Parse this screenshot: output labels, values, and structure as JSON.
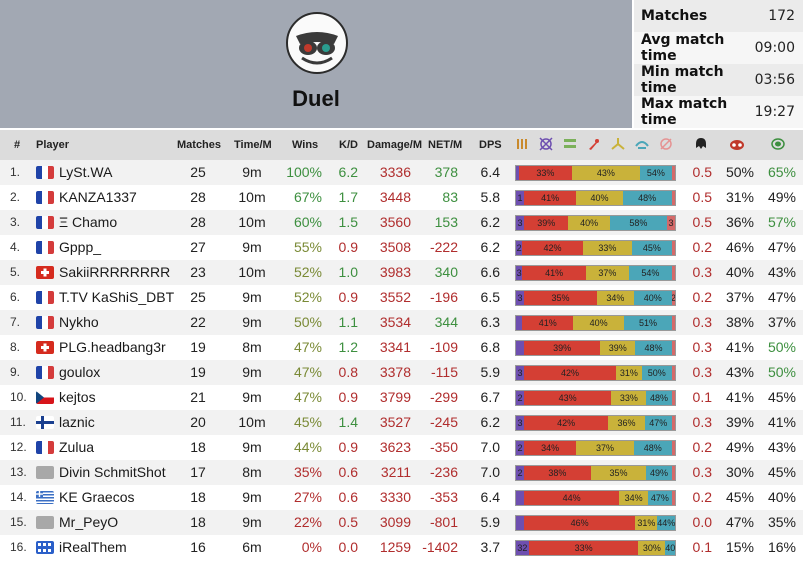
{
  "hero": {
    "title": "Duel"
  },
  "stats": [
    {
      "label": "Matches",
      "value": "172"
    },
    {
      "label": "Avg match time",
      "value": "09:00"
    },
    {
      "label": "Min match time",
      "value": "03:56"
    },
    {
      "label": "Max match time",
      "value": "19:27"
    }
  ],
  "columns": {
    "rank": "#",
    "player": "Player",
    "matches": "Matches",
    "time": "Time/M",
    "wins": "Wins",
    "kd": "K/D",
    "damage": "Damage/M",
    "net": "NET/M",
    "dps": "DPS"
  },
  "header_icons": [
    "ammo-icon",
    "crosshair-icon",
    "armor-icon",
    "rocket-icon",
    "plasma-icon",
    "rail-icon",
    "lightning-icon",
    "kill-icon",
    "eyes-icon",
    "armor-ratio-icon"
  ],
  "colors": {
    "seg": [
      "#6e4fb0",
      "#d43f34",
      "#c9b23a",
      "#4ba6b8",
      "#d46a6a"
    ],
    "wins_high": "#3d8f3f",
    "wins_mid": "#7a8a36",
    "wins_low": "#b02d2d",
    "negative": "#b02d2d"
  },
  "players": [
    {
      "rank": "1.",
      "flag": "fr",
      "name": "LySt.WA",
      "matches": "25",
      "time": "9m",
      "wins": "100%",
      "kd": "6.2",
      "damage": "3336",
      "net": "378",
      "dps": "6.4",
      "segs": [
        {
          "w": 2,
          "t": ""
        },
        {
          "w": 33,
          "t": "33%"
        },
        {
          "w": 43,
          "t": "43%"
        },
        {
          "w": 20,
          "t": "54%"
        },
        {
          "w": 2,
          "t": ""
        }
      ],
      "c1": "0.5",
      "c2": "50%",
      "c3": "65%"
    },
    {
      "rank": "2.",
      "flag": "fr",
      "name": "KANZA1337",
      "matches": "28",
      "time": "10m",
      "wins": "67%",
      "kd": "1.7",
      "damage": "3448",
      "net": "83",
      "dps": "5.8",
      "segs": [
        {
          "w": 5,
          "t": "1"
        },
        {
          "w": 33,
          "t": "41%"
        },
        {
          "w": 29,
          "t": "40%"
        },
        {
          "w": 31,
          "t": "48%"
        },
        {
          "w": 2,
          "t": ""
        }
      ],
      "c1": "0.5",
      "c2": "31%",
      "c3": "49%"
    },
    {
      "rank": "3.",
      "flag": "fr",
      "name": "Ξ Chamo",
      "matches": "28",
      "time": "10m",
      "wins": "60%",
      "kd": "1.5",
      "damage": "3560",
      "net": "153",
      "dps": "6.2",
      "segs": [
        {
          "w": 5,
          "t": "3"
        },
        {
          "w": 28,
          "t": "39%"
        },
        {
          "w": 26,
          "t": "40%"
        },
        {
          "w": 36,
          "t": "58%"
        },
        {
          "w": 5,
          "t": "3"
        }
      ],
      "c1": "0.5",
      "c2": "36%",
      "c3": "57%"
    },
    {
      "rank": "4.",
      "flag": "fr",
      "name": "Gppp_",
      "matches": "27",
      "time": "9m",
      "wins": "55%",
      "kd": "0.9",
      "damage": "3508",
      "net": "-222",
      "dps": "6.2",
      "segs": [
        {
          "w": 4,
          "t": "2"
        },
        {
          "w": 38,
          "t": "42%"
        },
        {
          "w": 31,
          "t": "33%"
        },
        {
          "w": 25,
          "t": "45%"
        },
        {
          "w": 2,
          "t": ""
        }
      ],
      "c1": "0.2",
      "c2": "46%",
      "c3": "47%"
    },
    {
      "rank": "5.",
      "flag": "ch",
      "name": "SakiiRRRRRRRR",
      "matches": "23",
      "time": "10m",
      "wins": "52%",
      "kd": "1.0",
      "damage": "3983",
      "net": "340",
      "dps": "6.6",
      "segs": [
        {
          "w": 4,
          "t": "3"
        },
        {
          "w": 40,
          "t": "41%"
        },
        {
          "w": 27,
          "t": "37%"
        },
        {
          "w": 27,
          "t": "54%"
        },
        {
          "w": 2,
          "t": ""
        }
      ],
      "c1": "0.3",
      "c2": "40%",
      "c3": "43%"
    },
    {
      "rank": "6.",
      "flag": "fr",
      "name": "T.TV KaShiS_DBT",
      "matches": "25",
      "time": "9m",
      "wins": "52%",
      "kd": "0.9",
      "damage": "3552",
      "net": "-196",
      "dps": "6.5",
      "segs": [
        {
          "w": 5,
          "t": "3"
        },
        {
          "w": 46,
          "t": "35%"
        },
        {
          "w": 23,
          "t": "34%"
        },
        {
          "w": 24,
          "t": "40%"
        },
        {
          "w": 2,
          "t": "2"
        }
      ],
      "c1": "0.2",
      "c2": "37%",
      "c3": "47%"
    },
    {
      "rank": "7.",
      "flag": "fr",
      "name": "Nykho",
      "matches": "22",
      "time": "9m",
      "wins": "50%",
      "kd": "1.1",
      "damage": "3534",
      "net": "344",
      "dps": "6.3",
      "segs": [
        {
          "w": 4,
          "t": ""
        },
        {
          "w": 32,
          "t": "41%"
        },
        {
          "w": 32,
          "t": "40%"
        },
        {
          "w": 30,
          "t": "51%"
        },
        {
          "w": 2,
          "t": ""
        }
      ],
      "c1": "0.3",
      "c2": "38%",
      "c3": "37%"
    },
    {
      "rank": "8.",
      "flag": "ch",
      "name": "PLG.headbang3r",
      "matches": "19",
      "time": "8m",
      "wins": "47%",
      "kd": "1.2",
      "damage": "3341",
      "net": "-109",
      "dps": "6.8",
      "segs": [
        {
          "w": 5,
          "t": ""
        },
        {
          "w": 48,
          "t": "39%"
        },
        {
          "w": 22,
          "t": "39%"
        },
        {
          "w": 23,
          "t": "48%"
        },
        {
          "w": 2,
          "t": ""
        }
      ],
      "c1": "0.3",
      "c2": "41%",
      "c3": "50%"
    },
    {
      "rank": "9.",
      "flag": "fr",
      "name": "goulox",
      "matches": "19",
      "time": "9m",
      "wins": "47%",
      "kd": "0.8",
      "damage": "3378",
      "net": "-115",
      "dps": "5.9",
      "segs": [
        {
          "w": 5,
          "t": "3"
        },
        {
          "w": 58,
          "t": "42%"
        },
        {
          "w": 16,
          "t": "31%"
        },
        {
          "w": 19,
          "t": "50%"
        },
        {
          "w": 2,
          "t": ""
        }
      ],
      "c1": "0.3",
      "c2": "43%",
      "c3": "50%"
    },
    {
      "rank": "10.",
      "flag": "cz",
      "name": "kejtos",
      "matches": "21",
      "time": "9m",
      "wins": "47%",
      "kd": "0.9",
      "damage": "3799",
      "net": "-299",
      "dps": "6.7",
      "segs": [
        {
          "w": 5,
          "t": "2"
        },
        {
          "w": 55,
          "t": "43%"
        },
        {
          "w": 22,
          "t": "33%"
        },
        {
          "w": 16,
          "t": "48%"
        },
        {
          "w": 2,
          "t": ""
        }
      ],
      "c1": "0.1",
      "c2": "41%",
      "c3": "45%"
    },
    {
      "rank": "11.",
      "flag": "fi",
      "name": "laznic",
      "matches": "20",
      "time": "10m",
      "wins": "45%",
      "kd": "1.4",
      "damage": "3527",
      "net": "-245",
      "dps": "6.2",
      "segs": [
        {
          "w": 5,
          "t": "3"
        },
        {
          "w": 53,
          "t": "42%"
        },
        {
          "w": 23,
          "t": "36%"
        },
        {
          "w": 17,
          "t": "47%"
        },
        {
          "w": 2,
          "t": ""
        }
      ],
      "c1": "0.3",
      "c2": "39%",
      "c3": "41%"
    },
    {
      "rank": "12.",
      "flag": "fr",
      "name": "Zulua",
      "matches": "18",
      "time": "9m",
      "wins": "44%",
      "kd": "0.9",
      "damage": "3623",
      "net": "-350",
      "dps": "7.0",
      "segs": [
        {
          "w": 5,
          "t": "2"
        },
        {
          "w": 33,
          "t": "34%"
        },
        {
          "w": 36,
          "t": "37%"
        },
        {
          "w": 24,
          "t": "48%"
        },
        {
          "w": 2,
          "t": ""
        }
      ],
      "c1": "0.2",
      "c2": "49%",
      "c3": "43%"
    },
    {
      "rank": "13.",
      "flag": "gray",
      "name": "Divin SchmitShot",
      "matches": "17",
      "time": "8m",
      "wins": "35%",
      "kd": "0.6",
      "damage": "3211",
      "net": "-236",
      "dps": "7.0",
      "segs": [
        {
          "w": 5,
          "t": "2"
        },
        {
          "w": 42,
          "t": "38%"
        },
        {
          "w": 35,
          "t": "35%"
        },
        {
          "w": 16,
          "t": "49%"
        },
        {
          "w": 2,
          "t": ""
        }
      ],
      "c1": "0.3",
      "c2": "30%",
      "c3": "45%"
    },
    {
      "rank": "14.",
      "flag": "gr",
      "name": "KE Graecos",
      "matches": "18",
      "time": "9m",
      "wins": "27%",
      "kd": "0.6",
      "damage": "3330",
      "net": "-353",
      "dps": "6.4",
      "segs": [
        {
          "w": 5,
          "t": ""
        },
        {
          "w": 60,
          "t": "44%"
        },
        {
          "w": 18,
          "t": "34%"
        },
        {
          "w": 15,
          "t": "47%"
        },
        {
          "w": 2,
          "t": ""
        }
      ],
      "c1": "0.2",
      "c2": "45%",
      "c3": "40%"
    },
    {
      "rank": "15.",
      "flag": "gray",
      "name": "Mr_PeyO",
      "matches": "18",
      "time": "9m",
      "wins": "22%",
      "kd": "0.5",
      "damage": "3099",
      "net": "-801",
      "dps": "5.9",
      "segs": [
        {
          "w": 5,
          "t": ""
        },
        {
          "w": 70,
          "t": "46%"
        },
        {
          "w": 14,
          "t": "31%"
        },
        {
          "w": 11,
          "t": "44%"
        },
        {
          "w": 0,
          "t": ""
        }
      ],
      "c1": "0.0",
      "c2": "47%",
      "c3": "35%"
    },
    {
      "rank": "16.",
      "flag": "blue",
      "name": "iRealThem",
      "matches": "16",
      "time": "6m",
      "wins": "0%",
      "kd": "0.0",
      "damage": "1259",
      "net": "-1402",
      "dps": "3.7",
      "segs": [
        {
          "w": 8,
          "t": "32"
        },
        {
          "w": 69,
          "t": "33%"
        },
        {
          "w": 17,
          "t": "30%"
        },
        {
          "w": 6,
          "t": "40"
        },
        {
          "w": 0,
          "t": ""
        }
      ],
      "c1": "0.1",
      "c2": "15%",
      "c3": "16%"
    }
  ]
}
